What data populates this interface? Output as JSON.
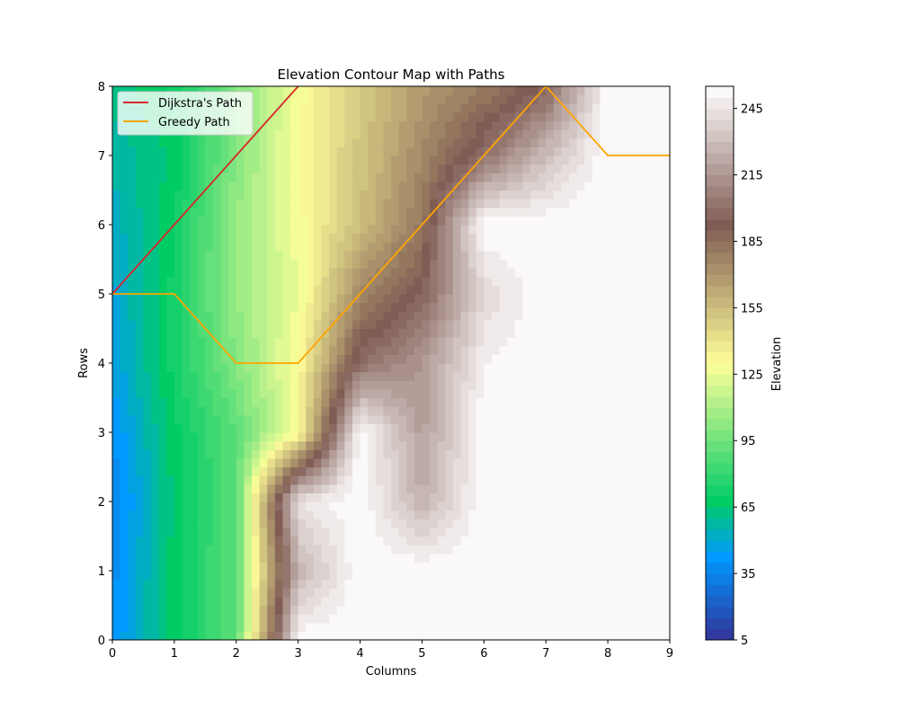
{
  "chart_data": {
    "type": "contour",
    "title": "Elevation Contour Map with Paths",
    "xlabel": "Columns",
    "ylabel": "Rows",
    "xlim": [
      0,
      9
    ],
    "ylim": [
      0,
      8
    ],
    "x_ticks": [
      0,
      1,
      2,
      3,
      4,
      5,
      6,
      7,
      8,
      9
    ],
    "y_ticks": [
      0,
      1,
      2,
      3,
      4,
      5,
      6,
      7,
      8
    ],
    "colormap": "terrain",
    "colorbar": {
      "label": "Elevation",
      "range": [
        5,
        255
      ],
      "ticks": [
        5,
        35,
        65,
        95,
        125,
        155,
        185,
        215,
        245
      ]
    },
    "elevation_grid_columns": [
      0,
      1,
      2,
      3,
      4,
      5,
      6,
      7,
      8,
      9
    ],
    "elevation_grid_rows": [
      0,
      1,
      2,
      3,
      4,
      5,
      6,
      7,
      8
    ],
    "elevation_grid": [
      [
        40,
        68,
        90,
        255,
        255,
        255,
        255,
        255,
        255,
        255
      ],
      [
        38,
        68,
        90,
        225,
        255,
        255,
        255,
        255,
        255,
        255
      ],
      [
        35,
        66,
        90,
        245,
        255,
        225,
        255,
        255,
        255,
        255
      ],
      [
        40,
        68,
        90,
        130,
        255,
        218,
        255,
        255,
        255,
        255
      ],
      [
        46,
        72,
        100,
        130,
        200,
        215,
        250,
        255,
        255,
        255
      ],
      [
        48,
        72,
        105,
        125,
        175,
        195,
        240,
        255,
        255,
        255
      ],
      [
        52,
        70,
        105,
        128,
        155,
        182,
        255,
        255,
        255,
        255
      ],
      [
        56,
        66,
        100,
        130,
        152,
        175,
        200,
        230,
        255,
        255
      ],
      [
        62,
        72,
        98,
        128,
        150,
        168,
        180,
        195,
        255,
        255
      ]
    ],
    "series": [
      {
        "name": "Dijkstra's Path",
        "color": "#d62728",
        "x": [
          0,
          1,
          2,
          3
        ],
        "y": [
          5,
          6,
          7,
          8
        ]
      },
      {
        "name": "Greedy Path",
        "color": "#ffa500",
        "x": [
          0,
          1,
          2,
          3,
          4,
          5,
          6,
          7,
          8,
          9
        ],
        "y": [
          5,
          5,
          4,
          4,
          5,
          6,
          7,
          8,
          7,
          7
        ]
      }
    ],
    "legend_position": "top-left"
  }
}
